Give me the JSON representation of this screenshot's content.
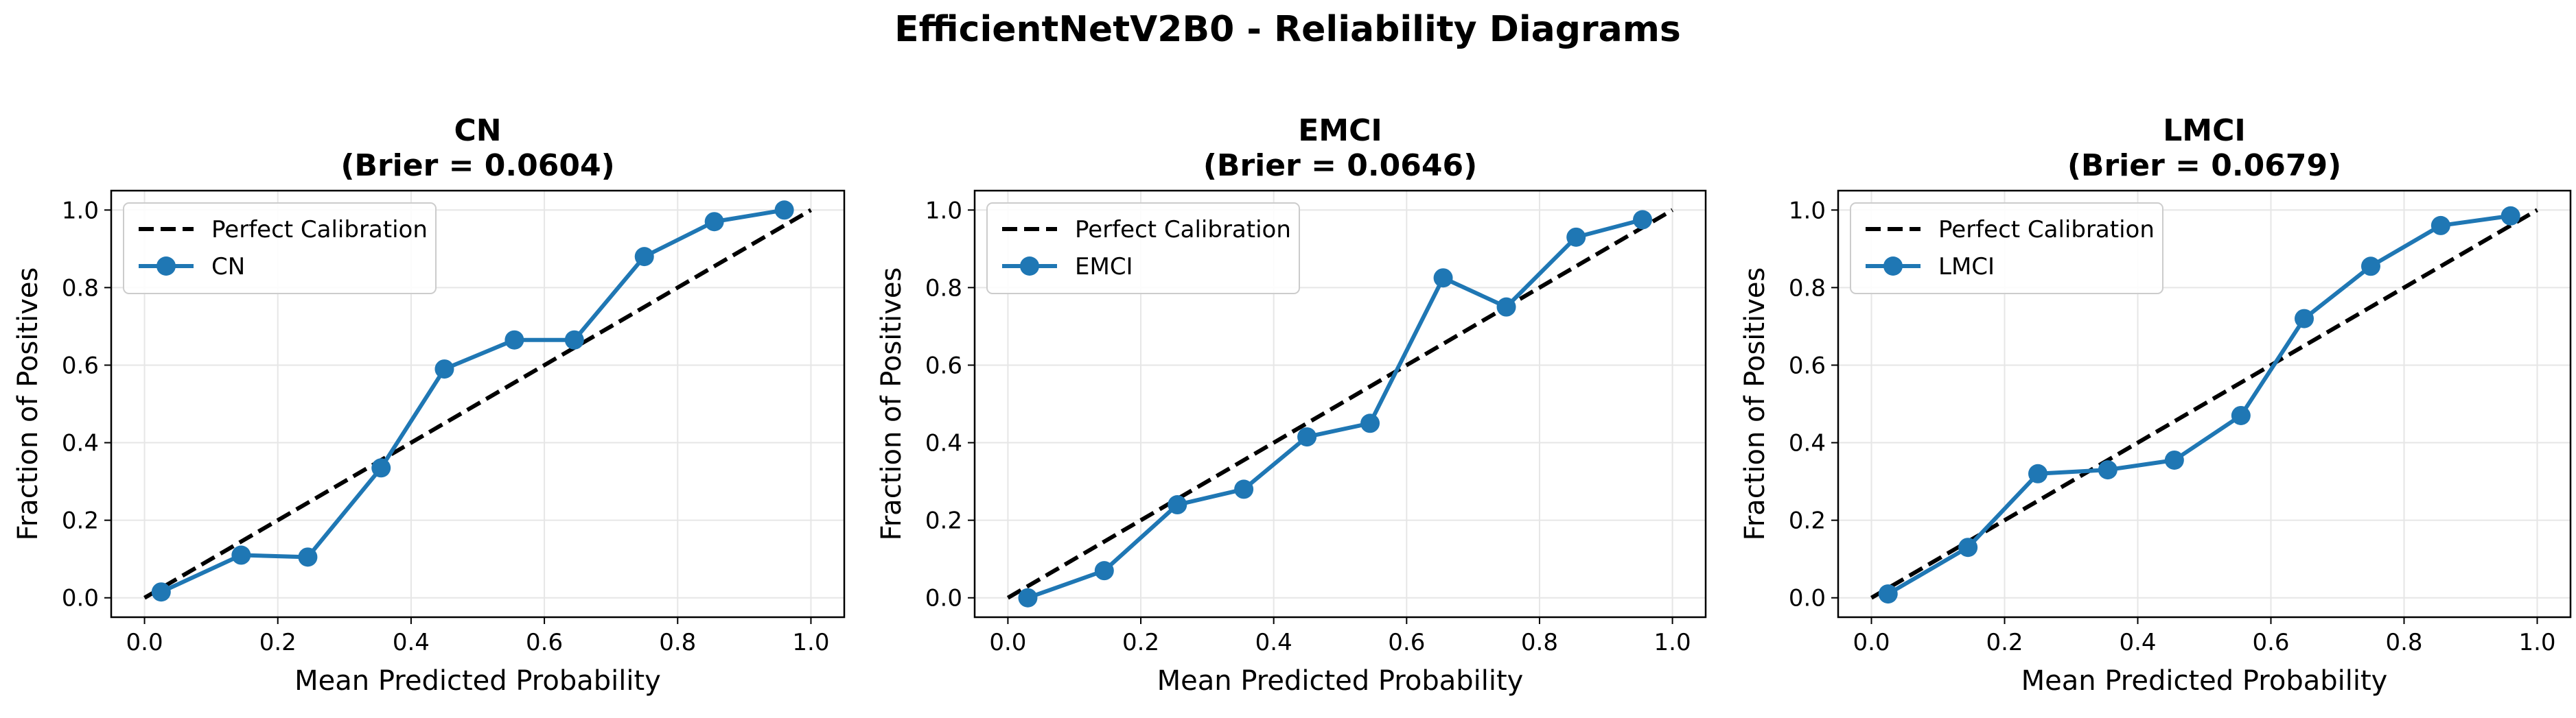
{
  "figure": {
    "title": "EfficientNetV2B0 - Reliability Diagrams",
    "colors": {
      "series": "#1f77b4",
      "reference": "#000000",
      "grid": "#e6e6e6"
    }
  },
  "chart_data": [
    {
      "type": "line",
      "title": "CN",
      "subtitle": "(Brier = 0.0604)",
      "xlabel": "Mean Predicted Probability",
      "ylabel": "Fraction of Positives",
      "xlim": [
        -0.05,
        1.05
      ],
      "ylim": [
        -0.05,
        1.05
      ],
      "xticks": [
        "0.0",
        "0.2",
        "0.4",
        "0.6",
        "0.8",
        "1.0"
      ],
      "yticks": [
        "0.0",
        "0.2",
        "0.4",
        "0.6",
        "0.8",
        "1.0"
      ],
      "grid": true,
      "legend_position": "upper-left",
      "reference_label": "Perfect Calibration",
      "series": [
        {
          "name": "CN",
          "x": [
            0.025,
            0.145,
            0.245,
            0.355,
            0.45,
            0.555,
            0.645,
            0.75,
            0.855,
            0.96
          ],
          "y": [
            0.015,
            0.11,
            0.105,
            0.335,
            0.59,
            0.665,
            0.665,
            0.88,
            0.97,
            1.0
          ]
        }
      ]
    },
    {
      "type": "line",
      "title": "EMCI",
      "subtitle": "(Brier = 0.0646)",
      "xlabel": "Mean Predicted Probability",
      "ylabel": "Fraction of Positives",
      "xlim": [
        -0.05,
        1.05
      ],
      "ylim": [
        -0.05,
        1.05
      ],
      "xticks": [
        "0.0",
        "0.2",
        "0.4",
        "0.6",
        "0.8",
        "1.0"
      ],
      "yticks": [
        "0.0",
        "0.2",
        "0.4",
        "0.6",
        "0.8",
        "1.0"
      ],
      "grid": true,
      "legend_position": "upper-left",
      "reference_label": "Perfect Calibration",
      "series": [
        {
          "name": "EMCI",
          "x": [
            0.03,
            0.145,
            0.255,
            0.355,
            0.45,
            0.545,
            0.655,
            0.75,
            0.855,
            0.955
          ],
          "y": [
            0.0,
            0.07,
            0.24,
            0.28,
            0.415,
            0.45,
            0.825,
            0.75,
            0.93,
            0.975
          ]
        }
      ]
    },
    {
      "type": "line",
      "title": "LMCI",
      "subtitle": "(Brier = 0.0679)",
      "xlabel": "Mean Predicted Probability",
      "ylabel": "Fraction of Positives",
      "xlim": [
        -0.05,
        1.05
      ],
      "ylim": [
        -0.05,
        1.05
      ],
      "xticks": [
        "0.0",
        "0.2",
        "0.4",
        "0.6",
        "0.8",
        "1.0"
      ],
      "yticks": [
        "0.0",
        "0.2",
        "0.4",
        "0.6",
        "0.8",
        "1.0"
      ],
      "grid": true,
      "legend_position": "upper-left",
      "reference_label": "Perfect Calibration",
      "series": [
        {
          "name": "LMCI",
          "x": [
            0.025,
            0.145,
            0.25,
            0.355,
            0.455,
            0.555,
            0.65,
            0.75,
            0.855,
            0.96
          ],
          "y": [
            0.01,
            0.13,
            0.32,
            0.33,
            0.355,
            0.47,
            0.72,
            0.855,
            0.96,
            0.985
          ]
        }
      ]
    }
  ]
}
